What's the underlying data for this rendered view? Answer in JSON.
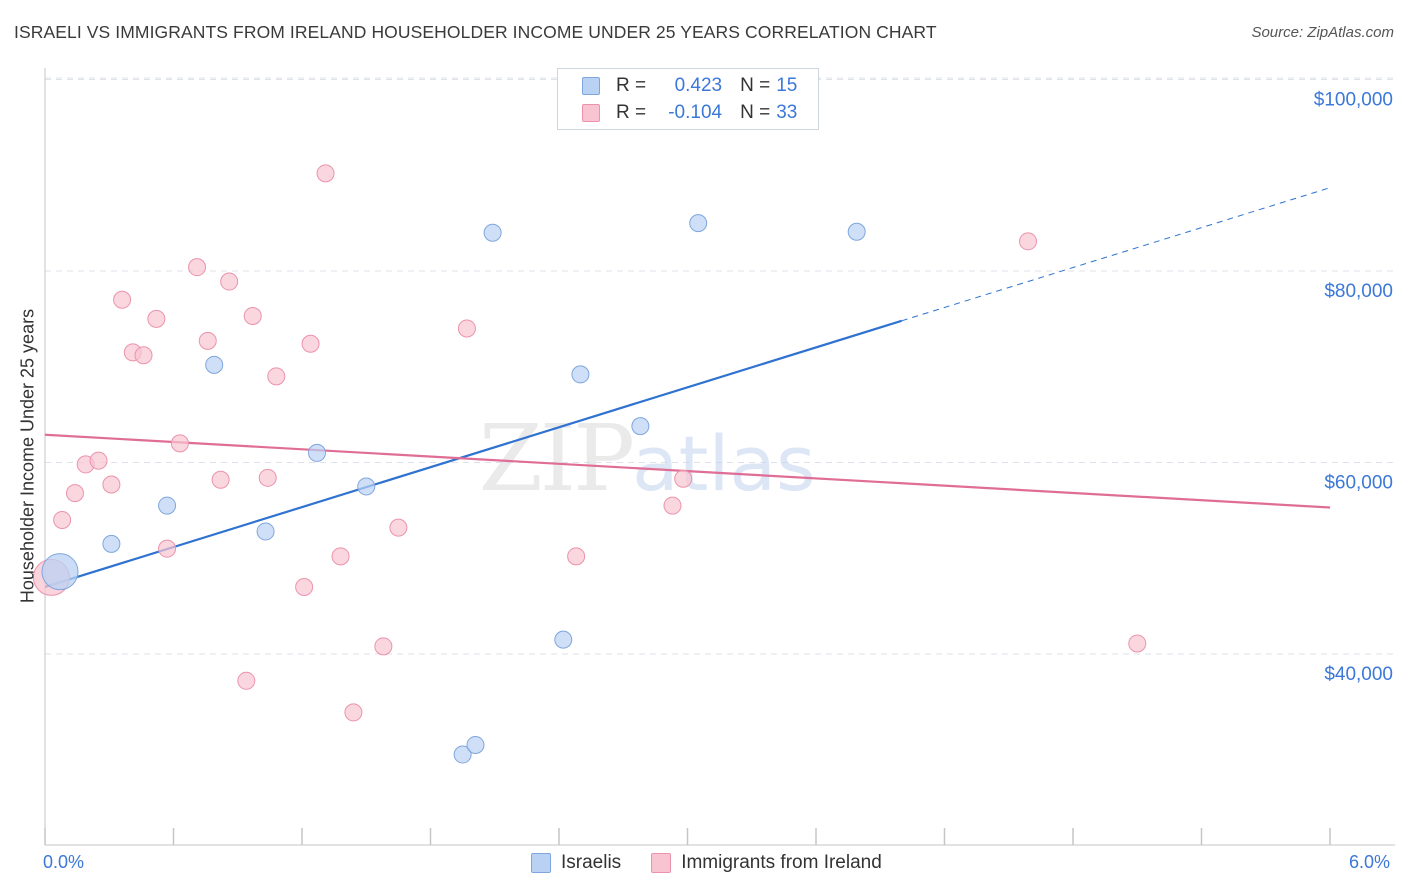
{
  "title": "ISRAELI VS IMMIGRANTS FROM IRELAND HOUSEHOLDER INCOME UNDER 25 YEARS CORRELATION CHART",
  "source": "Source: ZipAtlas.com",
  "legend": {
    "rows": [
      {
        "r_label": "R =",
        "r_value": "0.423",
        "n_label": "N =",
        "n_value": "15"
      },
      {
        "r_label": "R =",
        "r_value": "-0.104",
        "n_label": "N =",
        "n_value": "33"
      }
    ]
  },
  "bottom_legend": [
    "Israelis",
    "Immigrants from Ireland"
  ],
  "colors": {
    "israelis_fill": "#b9d1f3",
    "israelis_stroke": "#7fa6de",
    "israelis_line": "#2f72d0",
    "ireland_fill": "#f8c4d2",
    "ireland_stroke": "#eb93ad",
    "ireland_line": "#e06d95",
    "tick_label": "#3b78d8",
    "grid": "#dde2ea"
  },
  "chart_data": {
    "type": "scatter",
    "xlabel": "",
    "ylabel": "Householder Income Under 25 years",
    "xlim": [
      0.0,
      6.0
    ],
    "ylim": [
      20000,
      103000
    ],
    "x_tick_labels": [
      "0.0%",
      "6.0%"
    ],
    "y_ticks": [
      40000,
      60000,
      80000,
      100000
    ],
    "y_tick_labels": [
      "$40,000",
      "$60,000",
      "$80,000",
      "$100,000"
    ],
    "grid": true,
    "legend_position": "top-center",
    "watermark": "ZIPatlas",
    "series": [
      {
        "name": "Israelis",
        "points": [
          [
            0.07,
            48600,
            "large"
          ],
          [
            0.31,
            51500
          ],
          [
            0.57,
            55500
          ],
          [
            0.79,
            70200
          ],
          [
            1.03,
            52800
          ],
          [
            1.27,
            61000
          ],
          [
            1.5,
            57500
          ],
          [
            1.95,
            29500
          ],
          [
            2.01,
            30500
          ],
          [
            2.09,
            84000
          ],
          [
            2.42,
            41500
          ],
          [
            2.5,
            69200
          ],
          [
            2.78,
            63800
          ],
          [
            3.05,
            85000
          ],
          [
            3.79,
            84100
          ]
        ],
        "trend": {
          "x0": 0.0,
          "y0": 47000,
          "x1": 4.0,
          "y1": 74800,
          "dashed_to_x": 6.0,
          "dashed_to_y": 88700
        }
      },
      {
        "name": "Immigrants from Ireland",
        "points": [
          [
            0.03,
            48000,
            "large"
          ],
          [
            0.08,
            54000
          ],
          [
            0.14,
            56800
          ],
          [
            0.19,
            59800
          ],
          [
            0.25,
            60200
          ],
          [
            0.31,
            57700
          ],
          [
            0.36,
            77000
          ],
          [
            0.41,
            71500
          ],
          [
            0.46,
            71200
          ],
          [
            0.52,
            75000
          ],
          [
            0.57,
            51000
          ],
          [
            0.63,
            62000
          ],
          [
            0.71,
            80400
          ],
          [
            0.76,
            72700
          ],
          [
            0.82,
            58200
          ],
          [
            0.86,
            78900
          ],
          [
            0.94,
            37200
          ],
          [
            0.97,
            75300
          ],
          [
            1.04,
            58400
          ],
          [
            1.08,
            69000
          ],
          [
            1.21,
            47000
          ],
          [
            1.24,
            72400
          ],
          [
            1.31,
            90200
          ],
          [
            1.38,
            50200
          ],
          [
            1.44,
            33900
          ],
          [
            1.58,
            40800
          ],
          [
            1.65,
            53200
          ],
          [
            1.97,
            74000
          ],
          [
            2.48,
            50200
          ],
          [
            2.93,
            55500
          ],
          [
            2.98,
            58300
          ],
          [
            4.59,
            83100
          ],
          [
            5.1,
            41100
          ]
        ],
        "trend": {
          "x0": 0.0,
          "y0": 62900,
          "x1": 6.0,
          "y1": 55300
        }
      }
    ]
  }
}
